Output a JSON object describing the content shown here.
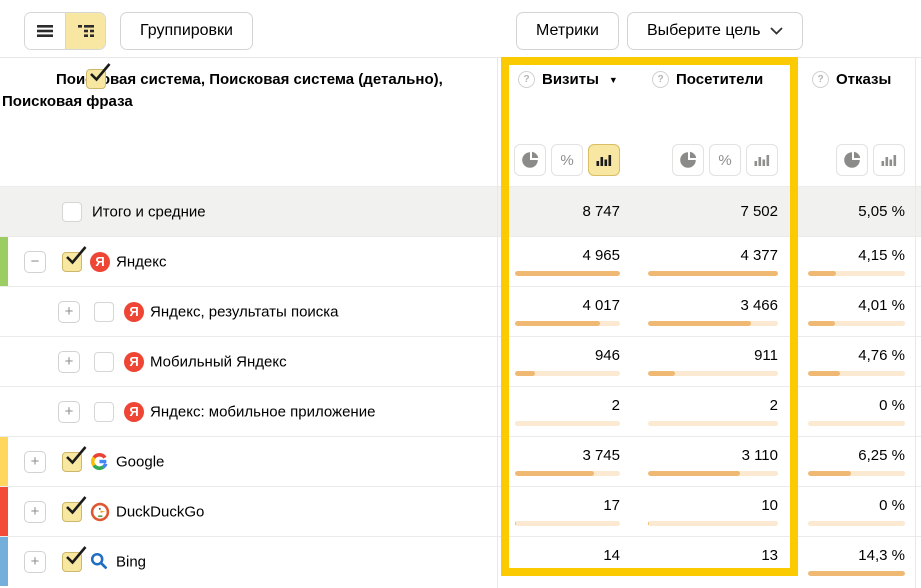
{
  "toolbar": {
    "groupings_label": "Группировки",
    "metrics_label": "Метрики",
    "goal_label": "Выберите цель"
  },
  "dimensions": {
    "header_label": "Поисковая система, Поисковая система (детально), Поисковая фраза",
    "checked": true
  },
  "columns": {
    "visits": {
      "label": "Визиты",
      "sort_indicator": "▼",
      "percent_toggle": "%",
      "active_toggle": "bars"
    },
    "visitors": {
      "label": "Посетители",
      "percent_toggle": "%"
    },
    "bounce": {
      "label": "Отказы"
    }
  },
  "colors": {
    "highlight": "#fbca00",
    "bar_fill": "#efb974",
    "bar_track": "#fbe9d2",
    "total_row_bg": "#f1f1ef",
    "stripe_yandex": "#9bcd62",
    "stripe_google": "#ffd75e",
    "stripe_duckduckgo": "#f44b38",
    "stripe_bing": "#74aeda",
    "yandex_icon": "#ee4534"
  },
  "table": {
    "rows": [
      {
        "type": "total",
        "label": "Итого и средние",
        "checked": false,
        "expand": null,
        "icon": null,
        "stripe": null,
        "visits": "8 747",
        "visitors": "7 502",
        "bounce": "5,05 %",
        "bars": null
      },
      {
        "level": 0,
        "label": "Яндекс",
        "checked": true,
        "expand": "minus",
        "icon": "yandex",
        "stripe": "#9bcd62",
        "visits": "4 965",
        "visitors": "4 377",
        "bounce": "4,15 %",
        "bars": {
          "visits": 100,
          "visitors": 100,
          "bounce": 29
        }
      },
      {
        "level": 1,
        "label": "Яндекс, результаты поиска",
        "checked": false,
        "expand": "plus",
        "icon": "yandex",
        "stripe": null,
        "visits": "4 017",
        "visitors": "3 466",
        "bounce": "4,01 %",
        "bars": {
          "visits": 81,
          "visitors": 79,
          "bounce": 28
        }
      },
      {
        "level": 1,
        "label": "Мобильный Яндекс",
        "checked": false,
        "expand": "plus",
        "icon": "yandex",
        "stripe": null,
        "visits": "946",
        "visitors": "911",
        "bounce": "4,76 %",
        "bars": {
          "visits": 19,
          "visitors": 21,
          "bounce": 33
        }
      },
      {
        "level": 1,
        "label": "Яндекс: мобильное приложение",
        "checked": false,
        "expand": "plus",
        "icon": "yandex",
        "stripe": null,
        "visits": "2",
        "visitors": "2",
        "bounce": "0 %",
        "bars": {
          "visits": 0,
          "visitors": 0,
          "bounce": 0
        }
      },
      {
        "level": 0,
        "label": "Google",
        "checked": true,
        "expand": "plus",
        "icon": "google",
        "stripe": "#ffd75e",
        "visits": "3 745",
        "visitors": "3 110",
        "bounce": "6,25 %",
        "bars": {
          "visits": 75,
          "visitors": 71,
          "bounce": 44
        }
      },
      {
        "level": 0,
        "label": "DuckDuckGo",
        "checked": true,
        "expand": "plus",
        "icon": "duckduckgo",
        "stripe": "#f44b38",
        "visits": "17",
        "visitors": "10",
        "bounce": "0 %",
        "bars": {
          "visits": 0.5,
          "visitors": 0.5,
          "bounce": 0
        }
      },
      {
        "level": 0,
        "label": "Bing",
        "checked": true,
        "expand": "plus",
        "icon": "bing",
        "stripe": "#74aeda",
        "visits": "14",
        "visitors": "13",
        "bounce": "14,3 %",
        "bars": {
          "visits": 0.5,
          "visitors": 0.5,
          "bounce": 100
        }
      }
    ]
  }
}
